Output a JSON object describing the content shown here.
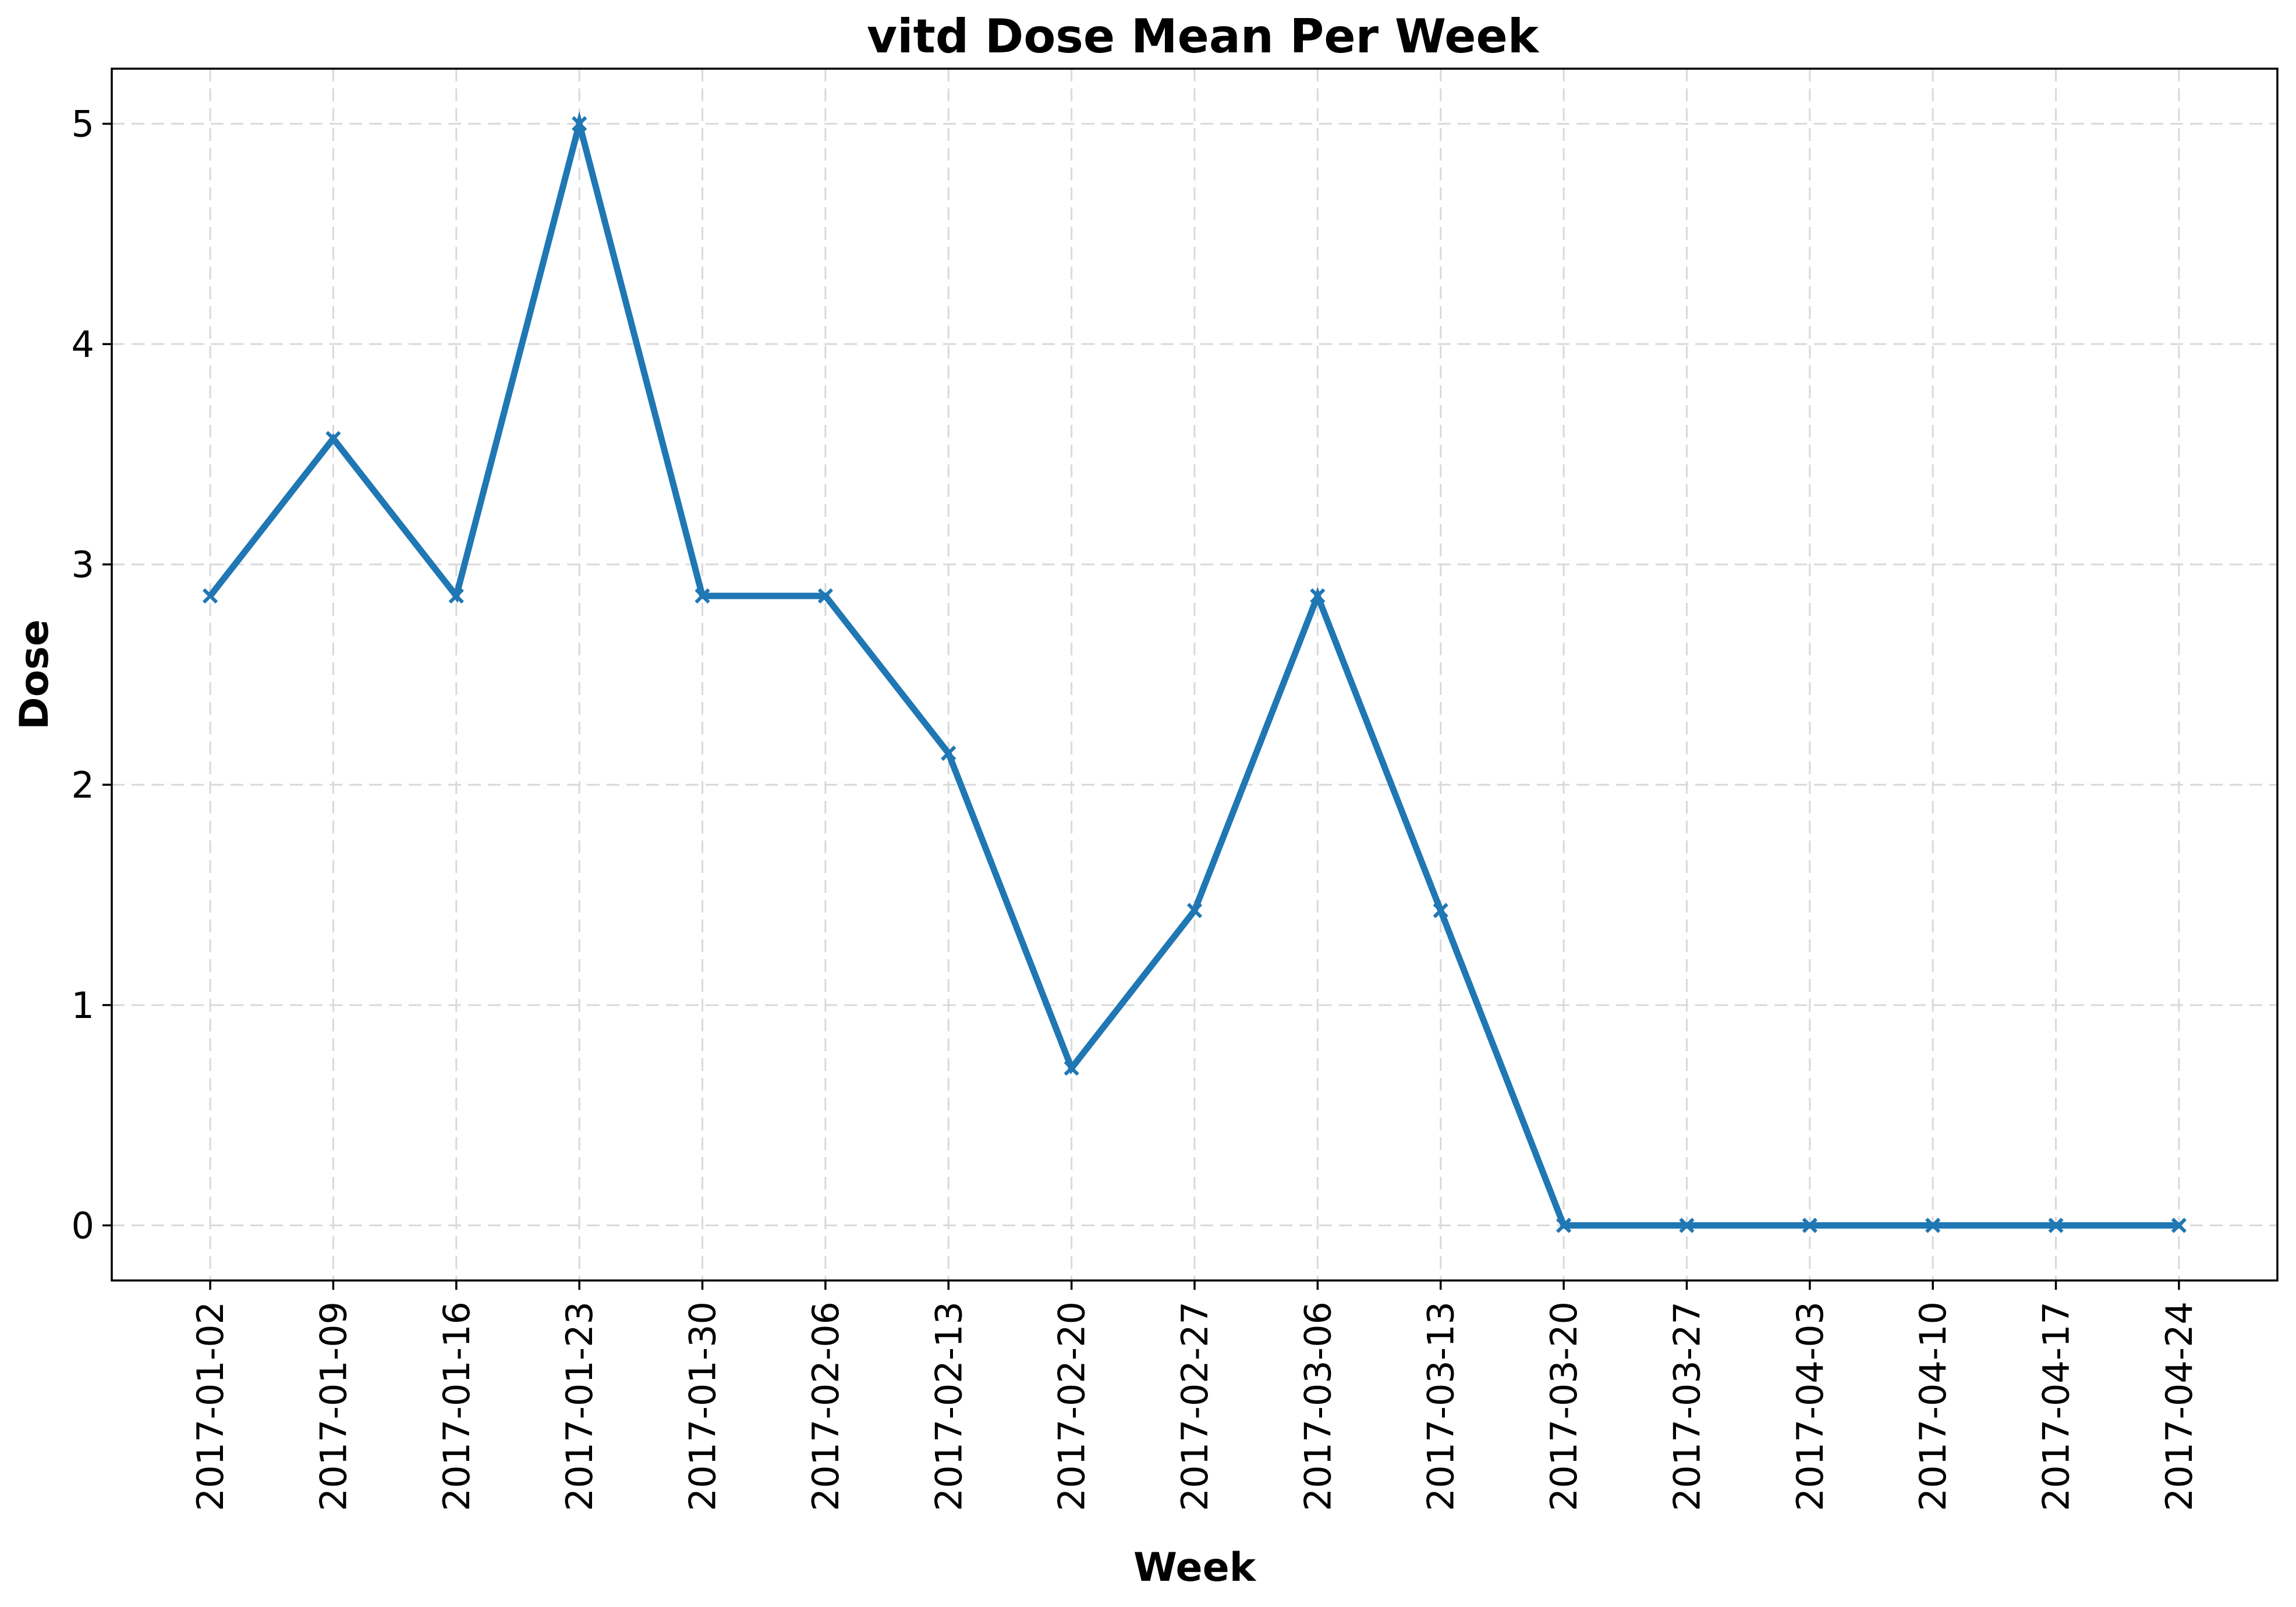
{
  "chart_data": {
    "type": "line",
    "title": "vitd Dose Mean Per Week",
    "xlabel": "Week",
    "ylabel": "Dose",
    "ylim": [
      -0.25,
      5.25
    ],
    "yticks": [
      0,
      1,
      2,
      3,
      4,
      5
    ],
    "grid": true,
    "color": "#1f77b4",
    "marker": "x",
    "categories": [
      "2017-01-02",
      "2017-01-09",
      "2017-01-16",
      "2017-01-23",
      "2017-01-30",
      "2017-02-06",
      "2017-02-13",
      "2017-02-20",
      "2017-02-27",
      "2017-03-06",
      "2017-03-13",
      "2017-03-20",
      "2017-03-27",
      "2017-04-03",
      "2017-04-10",
      "2017-04-17",
      "2017-04-24"
    ],
    "values": [
      2.857,
      3.571,
      2.857,
      5.0,
      2.857,
      2.857,
      2.143,
      0.714,
      1.429,
      2.857,
      1.429,
      0.0,
      0.0,
      0.0,
      0.0,
      0.0,
      0.0
    ]
  }
}
